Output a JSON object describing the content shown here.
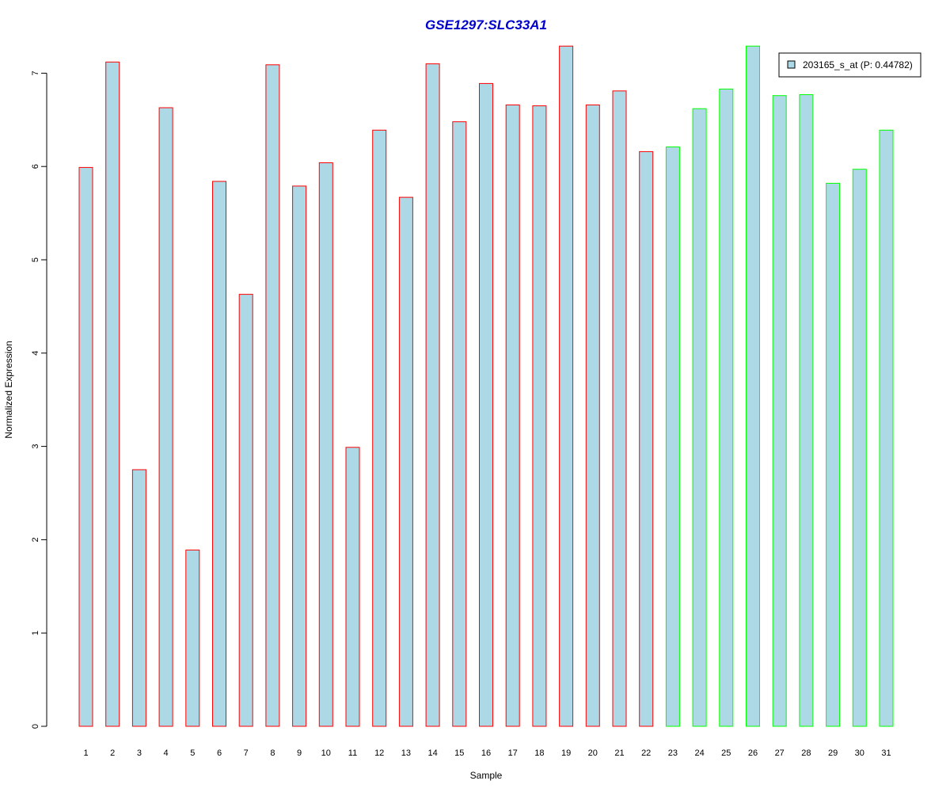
{
  "chart_data": {
    "type": "bar",
    "title": "GSE1297:SLC33A1",
    "xlabel": "Sample",
    "ylabel": "Normalized Expression",
    "ylim": [
      0,
      7.3
    ],
    "y_ticks": [
      0,
      1,
      2,
      3,
      4,
      5,
      6,
      7
    ],
    "grid": false,
    "legend": {
      "position": "top-right",
      "label": "203165_s_at (P: 0.44782)"
    },
    "colors": {
      "title": "#0000CC",
      "bar_fill": "#ADD8E6",
      "group_1_border": "#FF0000",
      "group_2_border": "#00FF00",
      "axis": "#000000"
    },
    "categories": [
      "1",
      "2",
      "3",
      "4",
      "5",
      "6",
      "7",
      "8",
      "9",
      "10",
      "11",
      "12",
      "13",
      "14",
      "15",
      "16",
      "17",
      "18",
      "19",
      "20",
      "21",
      "22",
      "23",
      "24",
      "25",
      "26",
      "27",
      "28",
      "29",
      "30",
      "31"
    ],
    "values": [
      5.99,
      7.12,
      2.75,
      6.63,
      1.89,
      5.84,
      4.63,
      7.09,
      5.79,
      6.04,
      2.99,
      6.39,
      5.67,
      7.1,
      6.48,
      6.89,
      6.66,
      6.65,
      7.29,
      6.66,
      6.81,
      6.16,
      6.21,
      6.62,
      6.83,
      7.29,
      6.76,
      6.77,
      5.82,
      5.97,
      6.39
    ],
    "groups": [
      1,
      1,
      1,
      1,
      1,
      1,
      1,
      1,
      1,
      1,
      1,
      1,
      1,
      1,
      1,
      1,
      1,
      1,
      1,
      1,
      1,
      1,
      2,
      2,
      2,
      2,
      2,
      2,
      2,
      2,
      2
    ]
  }
}
